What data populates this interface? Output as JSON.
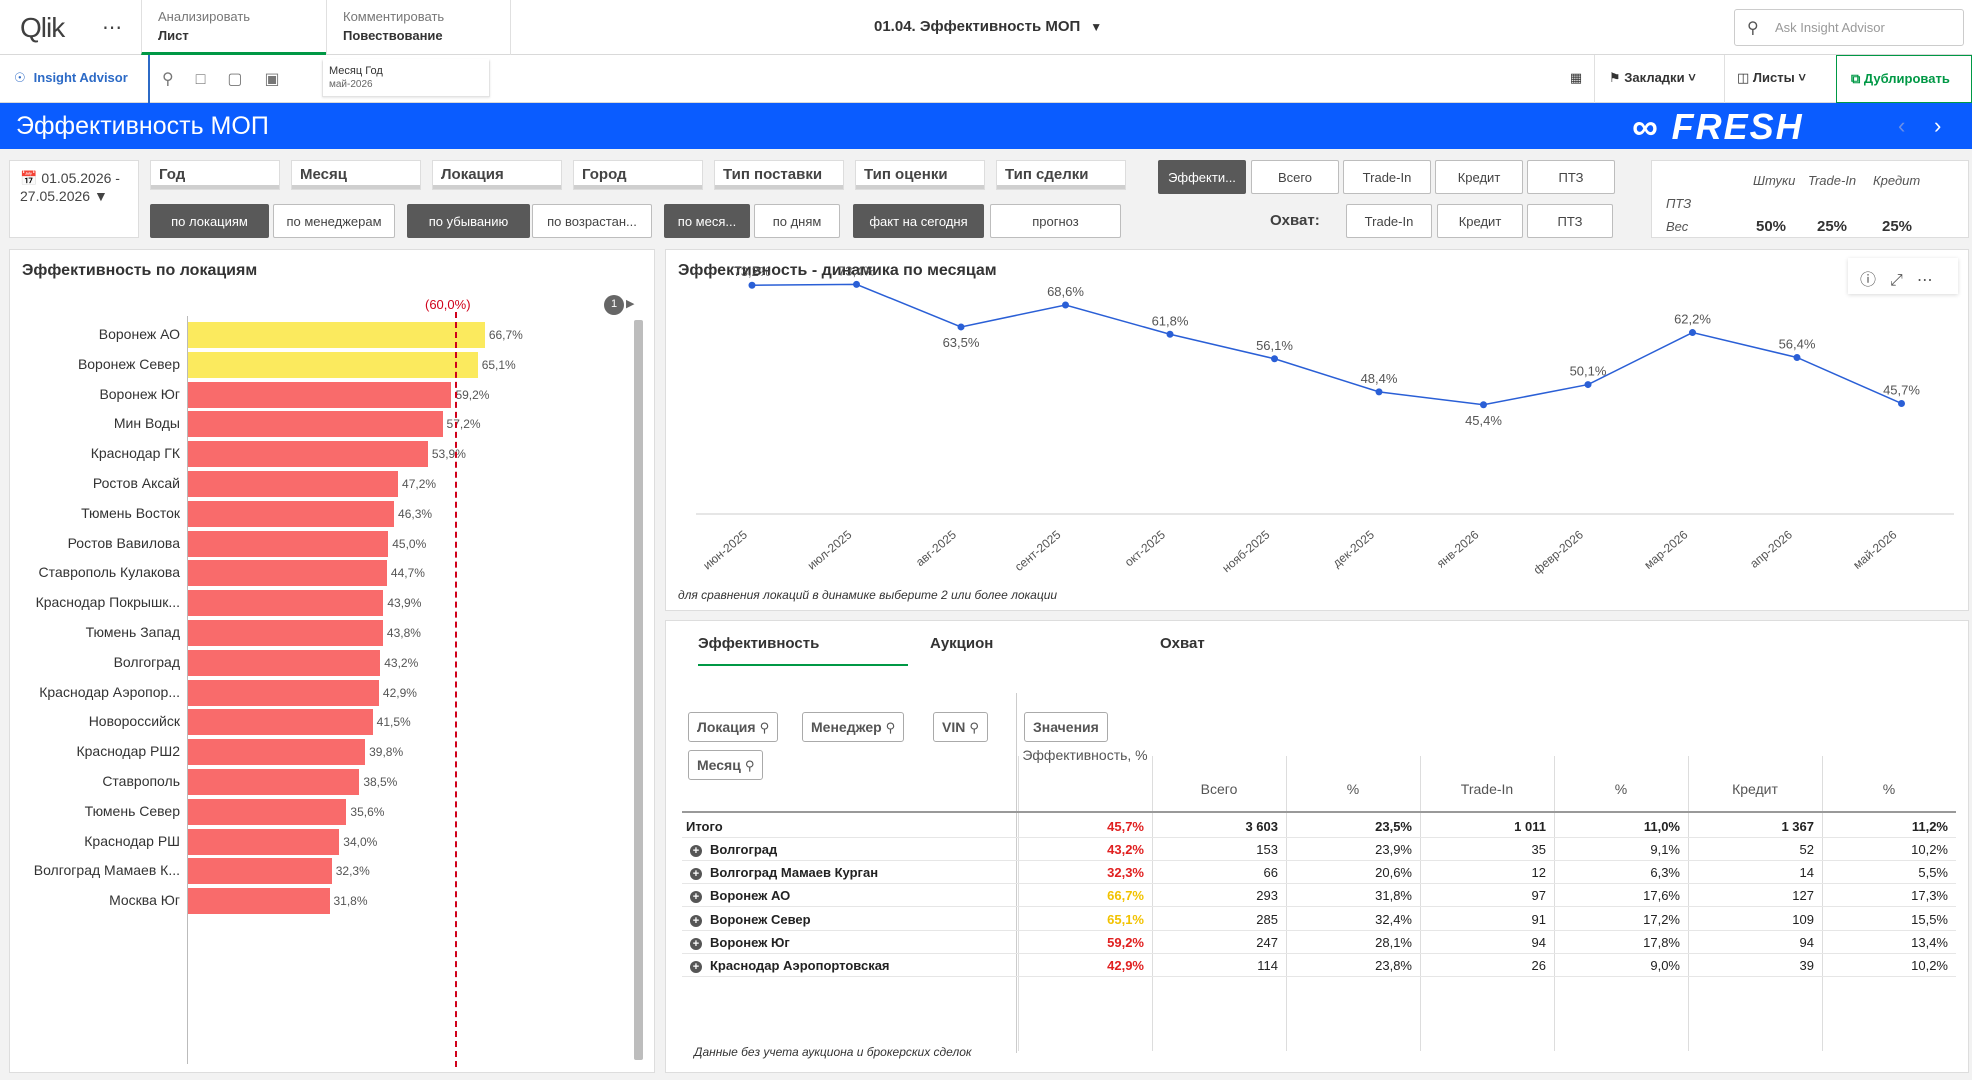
{
  "topbar": {
    "logo": "Qlik",
    "menu_icon": "more-dots-icon",
    "tabs": [
      {
        "top": "Анализировать",
        "bottom": "Лист"
      },
      {
        "top": "Комментировать",
        "bottom": "Повествование"
      }
    ],
    "sheet_title": "01.04. Эффективность МОП",
    "search_placeholder": "Ask Insight Advisor"
  },
  "toolbar": {
    "insight_advisor": "Insight Advisor",
    "selection_field": "Месяц Год",
    "selection_value": "май-2026",
    "bookmarks": "Закладки",
    "sheets": "Листы",
    "duplicate": "Дублировать"
  },
  "header": {
    "title": "Эффективность МОП",
    "brand": "FRESH",
    "brand_color": "#0a5cff"
  },
  "filters": {
    "date_range": "01.05.2026 - 27.05.2026",
    "dims": [
      "Год",
      "Месяц",
      "Локация",
      "Город",
      "Тип поставки",
      "Тип оценки",
      "Тип сделки"
    ],
    "group_buttons": [
      "по локациям",
      "по менеджерам"
    ],
    "sort_buttons": [
      "по убыванию",
      "по возрастан..."
    ],
    "period_buttons": [
      "по меся...",
      "по дням"
    ],
    "mode_buttons": [
      "факт на сегодня",
      "прогноз"
    ],
    "metric_buttons": [
      "Эффекти...",
      "Всего",
      "Trade-In",
      "Кредит",
      "ПТЗ"
    ],
    "coverage_label": "Охват:",
    "coverage_buttons": [
      "Trade-In",
      "Кредит",
      "ПТЗ"
    ]
  },
  "weights": {
    "headers": [
      "Штуки",
      "Trade-In",
      "Кредит"
    ],
    "row1_label": "ПТЗ",
    "row2_label": "Вес",
    "values": [
      "50%",
      "25%",
      "25%"
    ]
  },
  "loc_chart": {
    "title": "Эффективность по локациям",
    "ref_label": "(60,0%)",
    "page": "1",
    "colors": {
      "above": "#fbea5e",
      "below": "#f96b6b",
      "ref": "#d0021b"
    }
  },
  "chart_data": [
    {
      "type": "bar",
      "orientation": "horizontal",
      "title": "Эффективность по локациям",
      "reference_line": 60.0,
      "categories": [
        "Воронеж АО",
        "Воронеж Север",
        "Воронеж Юг",
        "Мин Воды",
        "Краснодар ГК",
        "Ростов Аксай",
        "Тюмень Восток",
        "Ростов Вавилова",
        "Ставрополь Кулакова",
        "Краснодар Покрышк...",
        "Тюмень Запад",
        "Волгоград",
        "Краснодар Аэропор...",
        "Новороссийск",
        "Краснодар РШ2",
        "Ставрополь",
        "Тюмень Север",
        "Краснодар РШ",
        "Волгоград Мамаев К...",
        "Москва Юг"
      ],
      "values": [
        66.7,
        65.1,
        59.2,
        57.2,
        53.9,
        47.2,
        46.3,
        45.0,
        44.7,
        43.9,
        43.8,
        43.2,
        42.9,
        41.5,
        39.8,
        38.5,
        35.6,
        34.0,
        32.3,
        31.8
      ],
      "labels": [
        "66,7%",
        "65,1%",
        "59,2%",
        "57,2%",
        "53,9%",
        "47,2%",
        "46,3%",
        "45,0%",
        "44,7%",
        "43,9%",
        "43,8%",
        "43,2%",
        "42,9%",
        "41,5%",
        "39,8%",
        "38,5%",
        "35,6%",
        "34,0%",
        "32,3%",
        "31,8%"
      ],
      "xlim": [
        0,
        100
      ]
    },
    {
      "type": "line",
      "title": "Эффективность - динамика по месяцам",
      "categories": [
        "июн-2025",
        "июл-2025",
        "авг-2025",
        "сент-2025",
        "окт-2025",
        "нояб-2025",
        "дек-2025",
        "янв-2026",
        "февр-2026",
        "мар-2026",
        "апр-2026",
        "май-2026"
      ],
      "values": [
        73.2,
        73.4,
        63.5,
        68.6,
        61.8,
        56.1,
        48.4,
        45.4,
        50.1,
        62.2,
        56.4,
        45.7
      ],
      "labels": [
        "73,2%",
        "73,4%",
        "63,5%",
        "68,6%",
        "61,8%",
        "56,1%",
        "48,4%",
        "45,4%",
        "50,1%",
        "62,2%",
        "56,4%",
        "45,7%"
      ],
      "ylim": [
        0,
        80
      ],
      "color": "#2a5fd6"
    }
  ],
  "line_chart": {
    "title": "Эффективность - динамика по месяцам",
    "note": "для сравнения локаций в динамике выберите 2 или более локации"
  },
  "table": {
    "tabs": [
      "Эффективность",
      "Аукцион",
      "Охват"
    ],
    "dim_chips": [
      "Локация",
      "Менеджер",
      "VIN",
      "Месяц"
    ],
    "values_chip": "Значения",
    "columns": [
      "Эффективность, %",
      "Всего",
      "%",
      "Trade-In",
      "%",
      "Кредит",
      "%"
    ],
    "total": {
      "name": "Итого",
      "cells": [
        "45,7%",
        "3 603",
        "23,5%",
        "1 011",
        "11,0%",
        "1 367",
        "11,2%"
      ]
    },
    "rows": [
      {
        "name": "Волгоград",
        "cells": [
          "43,2%",
          "153",
          "23,9%",
          "35",
          "9,1%",
          "52",
          "10,2%"
        ],
        "eff_color": "red"
      },
      {
        "name": "Волгоград Мамаев Курган",
        "cells": [
          "32,3%",
          "66",
          "20,6%",
          "12",
          "6,3%",
          "14",
          "5,5%"
        ],
        "eff_color": "red"
      },
      {
        "name": "Воронеж АО",
        "cells": [
          "66,7%",
          "293",
          "31,8%",
          "97",
          "17,6%",
          "127",
          "17,3%"
        ],
        "eff_color": "yellow"
      },
      {
        "name": "Воронеж Север",
        "cells": [
          "65,1%",
          "285",
          "32,4%",
          "91",
          "17,2%",
          "109",
          "15,5%"
        ],
        "eff_color": "yellow"
      },
      {
        "name": "Воронеж Юг",
        "cells": [
          "59,2%",
          "247",
          "28,1%",
          "94",
          "17,8%",
          "94",
          "13,4%"
        ],
        "eff_color": "red"
      },
      {
        "name": "Краснодар Аэропортовская",
        "cells": [
          "42,9%",
          "114",
          "23,8%",
          "26",
          "9,0%",
          "39",
          "10,2%"
        ],
        "eff_color": "red"
      }
    ],
    "note": "Данные без учета аукциона и брокерских сделок"
  }
}
